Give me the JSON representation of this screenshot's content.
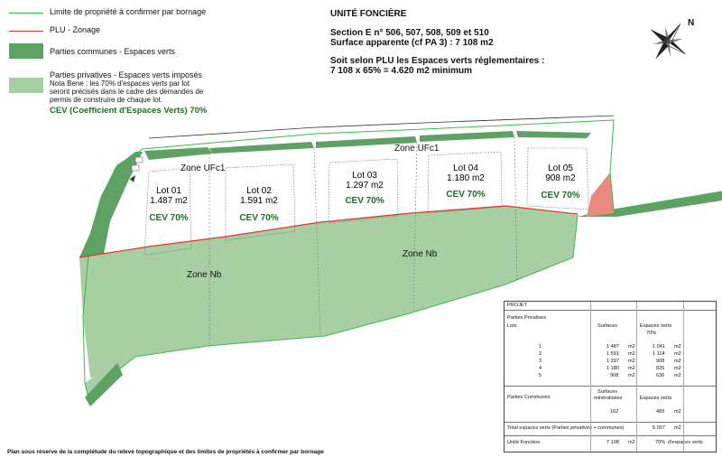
{
  "legend": {
    "items": [
      {
        "label": "Limite de propriété à confirmer par bornage"
      },
      {
        "label": "PLU - Zonage"
      },
      {
        "label": "Parties communes - Espaces verts"
      },
      {
        "label": "Parties privatives - Espaces verts imposés"
      }
    ],
    "nota_bene": [
      "Nota Bene : les 70% d'espaces verts par lot",
      "seront précisés dans le cadre des demandes de",
      "permis de construire de chaque lot."
    ],
    "cev": "CEV (Coefficient d'Espaces Verts) 70%"
  },
  "colors": {
    "property_limit": "#3cb84a",
    "plu_zoning": "#e0352b",
    "common_green": "#5fa064",
    "private_green": "#a8cfa4",
    "cev_text": "#1c6e22"
  },
  "title": {
    "heading": "UNITÉ FONCIÈRE",
    "section": "Section E n° 506, 507, 508, 509 et 510",
    "surface": "Surface apparente (cf PA 3) : 7 108 m2",
    "plu_line1": "Soit selon PLU les Espaces verts réglementaires :",
    "plu_line2": "7 108 x 65% = 4.620 m2 minimum"
  },
  "compass": {
    "letter": "N"
  },
  "map": {
    "zones": [
      "Zone UFc1",
      "Zone UFc1",
      "Zone Nb",
      "Zone Nb"
    ],
    "lots": [
      {
        "name": "Lot 01",
        "area": "1.487 m2",
        "cev": "CEV 70%"
      },
      {
        "name": "Lot 02",
        "area": "1.591 m2",
        "cev": "CEV 70%"
      },
      {
        "name": "Lot 03",
        "area": "1.297 m2",
        "cev": "CEV 70%"
      },
      {
        "name": "Lot 04",
        "area": "1.180 m2",
        "cev": "CEV 70%"
      },
      {
        "name": "Lot 05",
        "area": "908 m2",
        "cev": "CEV 70%"
      }
    ]
  },
  "table": {
    "title": "PROJET",
    "private_header": "Parties Privatives",
    "col_lots": "Lots",
    "col_surfaces": "Surfaces",
    "col_green_line1": "Espaces verts",
    "col_green_line2": "70%",
    "rows": [
      {
        "lot": "1",
        "surface": "1 487",
        "unit1": "m2",
        "green": "1 041",
        "unit2": "m2"
      },
      {
        "lot": "2",
        "surface": "1 591",
        "unit1": "m2",
        "green": "1 114",
        "unit2": "m2"
      },
      {
        "lot": "3",
        "surface": "1 297",
        "unit1": "m2",
        "green": "908",
        "unit2": "m2"
      },
      {
        "lot": "4",
        "surface": "1 180",
        "unit1": "m2",
        "green": "826",
        "unit2": "m2"
      },
      {
        "lot": "5",
        "surface": "908",
        "unit1": "m2",
        "green": "636",
        "unit2": "m2"
      }
    ],
    "common_label": "Parties Communes",
    "common_surface_line1": "Surfaces",
    "common_surface_line2": "minéralisées",
    "common_green_label": "Espaces verts",
    "common_surface": "162",
    "common_green": "483",
    "common_green_unit": "m2",
    "total_label": "Total espaces verts (Parties privatives + communes)",
    "total_value": "5 007",
    "total_unit": "m2",
    "unite_label": "Unité Foncière",
    "unite_surface": "7 108",
    "unite_unit": "m2",
    "unite_percent": "70%",
    "unite_suffix": "d'espaces verts"
  },
  "footer": "Plan sous réserve de la complétude du relevé topographique et des limites de propriétés à confirmer par bornage"
}
